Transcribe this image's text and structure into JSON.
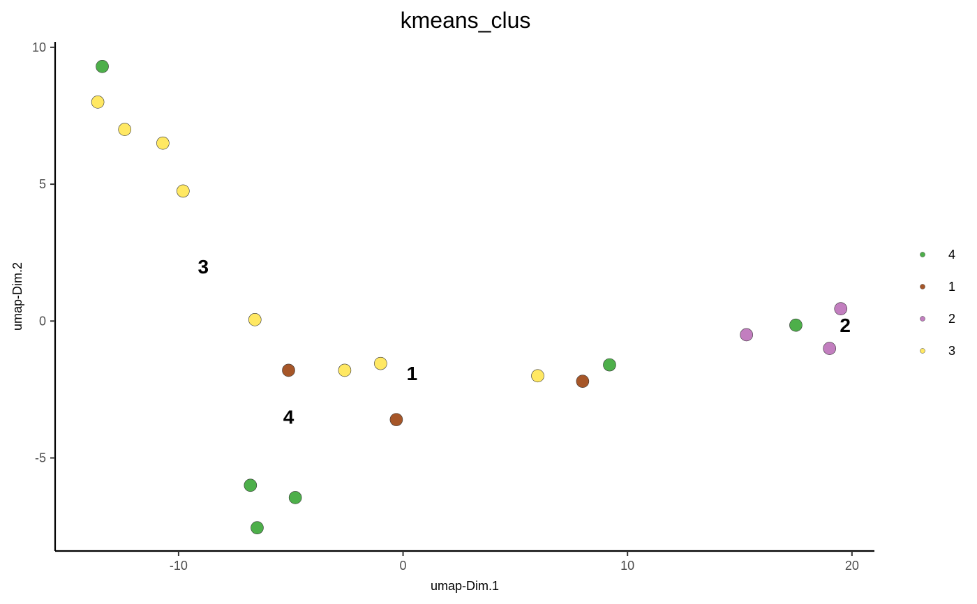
{
  "chart_data": {
    "type": "scatter",
    "title": "kmeans_clus",
    "xlabel": "umap-Dim.1",
    "ylabel": "umap-Dim.2",
    "xlim": [
      -15.5,
      21
    ],
    "ylim": [
      -8.4,
      10.2
    ],
    "x_ticks": [
      -10,
      0,
      10,
      20
    ],
    "x_tick_labels": [
      "-10",
      "0",
      "10",
      "20"
    ],
    "y_ticks": [
      -5,
      0,
      5,
      10
    ],
    "y_tick_labels": [
      "-5",
      "0",
      "5",
      "10"
    ],
    "grid": false,
    "legend_position": "right",
    "series": [
      {
        "name": "4",
        "color": "#4daf4a",
        "points": [
          {
            "x": -13.4,
            "y": 9.3
          },
          {
            "x": -6.8,
            "y": -6.0
          },
          {
            "x": -4.8,
            "y": -6.45
          },
          {
            "x": -6.5,
            "y": -7.55
          },
          {
            "x": 9.2,
            "y": -1.6
          },
          {
            "x": 17.5,
            "y": -0.15
          }
        ]
      },
      {
        "name": "1",
        "color": "#a65628",
        "points": [
          {
            "x": -5.1,
            "y": -1.8
          },
          {
            "x": -0.3,
            "y": -3.6
          },
          {
            "x": 8.0,
            "y": -2.2
          }
        ]
      },
      {
        "name": "2",
        "color": "#c27ebf",
        "points": [
          {
            "x": 15.3,
            "y": -0.5
          },
          {
            "x": 19.0,
            "y": -1.0
          },
          {
            "x": 19.5,
            "y": 0.45
          }
        ]
      },
      {
        "name": "3",
        "color": "#ffe863",
        "points": [
          {
            "x": -13.6,
            "y": 8.0
          },
          {
            "x": -12.4,
            "y": 7.0
          },
          {
            "x": -10.7,
            "y": 6.5
          },
          {
            "x": -9.8,
            "y": 4.75
          },
          {
            "x": -6.6,
            "y": 0.05
          },
          {
            "x": -2.6,
            "y": -1.8
          },
          {
            "x": -1.0,
            "y": -1.55
          },
          {
            "x": 6.0,
            "y": -2.0
          }
        ]
      }
    ],
    "cluster_labels": [
      {
        "text": "3",
        "x": -8.9,
        "y": 2.0
      },
      {
        "text": "1",
        "x": 0.4,
        "y": -1.9
      },
      {
        "text": "4",
        "x": -5.1,
        "y": -3.5
      },
      {
        "text": "2",
        "x": 19.7,
        "y": -0.15
      }
    ],
    "legend": [
      {
        "label": "4",
        "color": "#4daf4a"
      },
      {
        "label": "1",
        "color": "#a65628"
      },
      {
        "label": "2",
        "color": "#c27ebf"
      },
      {
        "label": "3",
        "color": "#ffe863"
      }
    ]
  }
}
